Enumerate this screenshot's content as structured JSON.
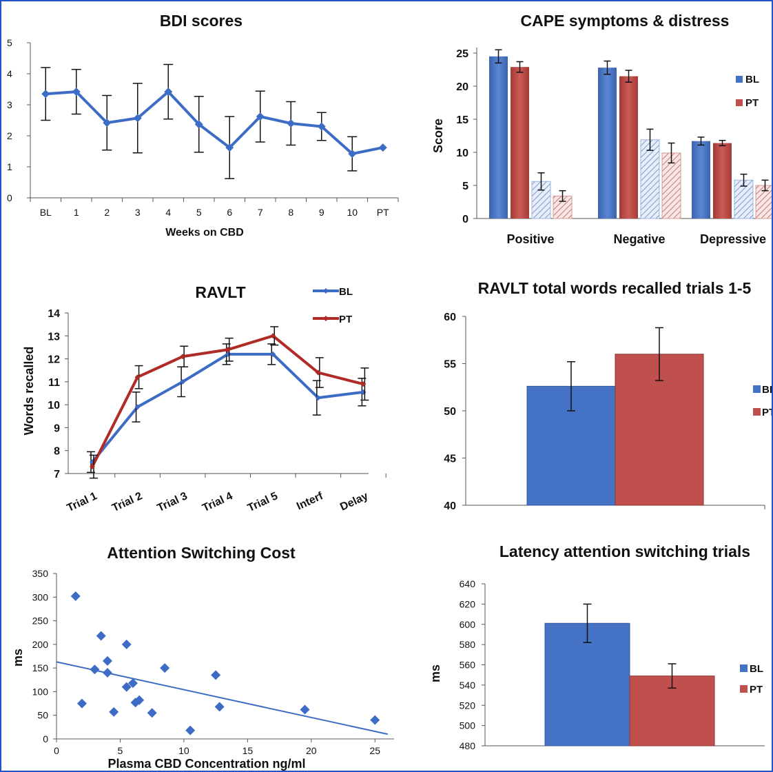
{
  "colors": {
    "blue": "#4472c4",
    "red": "#c0504d",
    "darkred": "#a33a36",
    "blueLine": "#3d6cc4",
    "redLine": "#b02a26"
  },
  "chart_data": [
    {
      "id": "bdi",
      "type": "line",
      "title": "BDI scores",
      "xlabel": "Weeks on CBD",
      "ylabel": "",
      "categories": [
        "BL",
        "1",
        "2",
        "3",
        "4",
        "5",
        "6",
        "7",
        "8",
        "9",
        "10",
        "PT"
      ],
      "yticks": [
        "0",
        "1",
        "2",
        "3",
        "4",
        "5"
      ],
      "ylim": [
        0,
        5
      ],
      "series": [
        {
          "values": [
            3.35,
            3.42,
            2.42,
            2.57,
            3.42,
            2.37,
            1.62,
            2.62,
            2.4,
            2.3,
            1.42,
            1.62
          ],
          "errors": [
            0.85,
            0.72,
            0.88,
            1.12,
            0.88,
            0.9,
            1.0,
            0.82,
            0.7,
            0.45,
            0.55,
            0
          ]
        }
      ]
    },
    {
      "id": "cape",
      "type": "bar",
      "title": "CAPE symptoms & distress",
      "ylabel": "Score",
      "categories": [
        "Positive",
        "Negative",
        "Depressive"
      ],
      "yticks": [
        "0",
        "5",
        "10",
        "15",
        "20",
        "25"
      ],
      "ylim": [
        0,
        25
      ],
      "legend": [
        "BL",
        "PT"
      ],
      "series": [
        {
          "name": "BL",
          "values": [
            24.5,
            22.8,
            11.7
          ],
          "errors": [
            1.0,
            1.0,
            0.6
          ]
        },
        {
          "name": "PT",
          "values": [
            22.9,
            21.5,
            11.4
          ],
          "errors": [
            0.8,
            0.9,
            0.4
          ]
        },
        {
          "values": [
            5.6,
            11.9,
            5.8
          ],
          "errors": [
            1.3,
            1.6,
            0.9
          ],
          "hatched": true
        },
        {
          "values": [
            3.4,
            9.9,
            5.0
          ],
          "errors": [
            0.8,
            1.5,
            0.8
          ],
          "hatched": true
        }
      ]
    },
    {
      "id": "ravlt",
      "type": "line",
      "title": "RAVLT",
      "ylabel": "Words recalled",
      "categories": [
        "Trial 1",
        "Trial 2",
        "Trial 3",
        "Trial 4",
        "Trial 5",
        "Interf",
        "Delay"
      ],
      "yticks": [
        "7",
        "8",
        "9",
        "10",
        "11",
        "12",
        "13",
        "14"
      ],
      "ylim": [
        7,
        14
      ],
      "legend": [
        "BL",
        "PT"
      ],
      "series": [
        {
          "name": "BL",
          "values": [
            7.5,
            9.9,
            11.0,
            12.2,
            12.2,
            10.3,
            10.55
          ],
          "errors": [
            0.45,
            0.65,
            0.65,
            0.45,
            0.45,
            0.75,
            0.6
          ]
        },
        {
          "name": "PT",
          "values": [
            7.3,
            11.2,
            12.1,
            12.4,
            13.0,
            11.4,
            10.9
          ],
          "errors": [
            0.5,
            0.5,
            0.45,
            0.5,
            0.4,
            0.65,
            0.7
          ]
        }
      ]
    },
    {
      "id": "ravlt_total",
      "type": "bar",
      "title": "RAVLT total words recalled trials 1-5",
      "categories": [
        ""
      ],
      "yticks": [
        "40",
        "45",
        "50",
        "55",
        "60"
      ],
      "ylim": [
        40,
        60
      ],
      "legend": [
        "BL",
        "PT"
      ],
      "series": [
        {
          "name": "BL",
          "values": [
            52.6
          ],
          "errors": [
            2.6
          ]
        },
        {
          "name": "PT",
          "values": [
            56.0
          ],
          "errors": [
            2.8
          ]
        }
      ]
    },
    {
      "id": "attention",
      "type": "scatter",
      "title": "Attention Switching Cost",
      "xlabel": "Plasma CBD Concentration ng/ml",
      "ylabel": "ms",
      "xticks": [
        "0",
        "5",
        "10",
        "15",
        "20",
        "25"
      ],
      "yticks": [
        "0",
        "50",
        "100",
        "150",
        "200",
        "250",
        "300",
        "350"
      ],
      "xlim": [
        0,
        26.5
      ],
      "ylim": [
        0,
        350
      ],
      "points": [
        [
          1.5,
          302
        ],
        [
          2.0,
          75
        ],
        [
          3.0,
          147
        ],
        [
          3.5,
          218
        ],
        [
          4.0,
          165
        ],
        [
          4.0,
          140
        ],
        [
          4.5,
          57
        ],
        [
          5.5,
          200
        ],
        [
          5.5,
          110
        ],
        [
          6.0,
          118
        ],
        [
          6.2,
          77
        ],
        [
          6.5,
          82
        ],
        [
          7.5,
          55
        ],
        [
          8.5,
          150
        ],
        [
          10.5,
          18
        ],
        [
          12.5,
          135
        ],
        [
          12.8,
          68
        ],
        [
          19.5,
          62
        ],
        [
          25.0,
          40
        ]
      ],
      "trendline": [
        [
          0,
          163
        ],
        [
          26,
          10
        ]
      ]
    },
    {
      "id": "latency",
      "type": "bar",
      "title": "Latency attention switching trials",
      "ylabel": "ms",
      "categories": [
        ""
      ],
      "yticks": [
        "480",
        "500",
        "520",
        "540",
        "560",
        "580",
        "600",
        "620",
        "640"
      ],
      "ylim": [
        480,
        640
      ],
      "legend": [
        "BL",
        "PT"
      ],
      "series": [
        {
          "name": "BL",
          "values": [
            601
          ],
          "errors": [
            19
          ]
        },
        {
          "name": "PT",
          "values": [
            549
          ],
          "errors": [
            12
          ]
        }
      ]
    }
  ]
}
